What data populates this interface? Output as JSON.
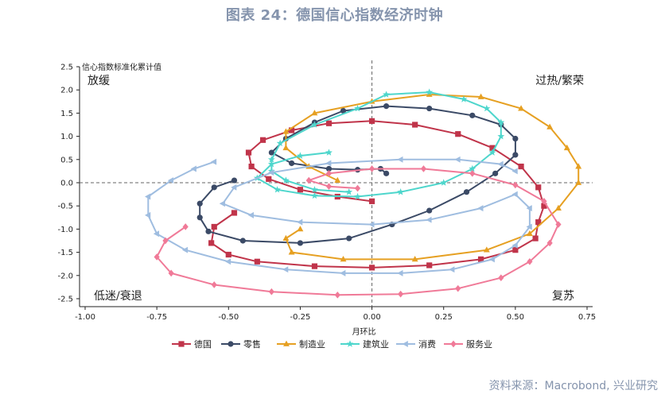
{
  "page": {
    "title": "图表 24：德国信心指数经济时钟",
    "source": "资料来源：Macrobond, 兴业研究"
  },
  "chart_data": {
    "type": "line",
    "title": "图表 24：德国信心指数经济时钟",
    "xlabel": "月环比",
    "ylabel": "信心指数标准化累计值",
    "xlim": [
      -1.0,
      0.75
    ],
    "ylim": [
      -2.5,
      2.5
    ],
    "x_ticks": [
      "-1.00",
      "-0.75",
      "-0.50",
      "-0.25",
      "0.00",
      "0.25",
      "0.50",
      "0.75"
    ],
    "y_ticks": [
      "2.5",
      "2.0",
      "1.5",
      "1.0",
      "0.5",
      "0.0",
      "-0.5",
      "-1.0",
      "-1.5",
      "-2.0",
      "-2.5"
    ],
    "reference_lines": {
      "x": 0,
      "y": 0,
      "style": "dashed"
    },
    "quadrants": {
      "top_left": "放缓",
      "top_right": "过热/繁荣",
      "bottom_left": "低迷/衰退",
      "bottom_right": "复苏"
    },
    "legend_position": "bottom",
    "grid": false,
    "series": [
      {
        "name": "德国",
        "color": "#c0344a",
        "marker": "square",
        "points": [
          [
            -0.48,
            -0.65
          ],
          [
            -0.55,
            -0.95
          ],
          [
            -0.56,
            -1.3
          ],
          [
            -0.5,
            -1.55
          ],
          [
            -0.4,
            -1.7
          ],
          [
            -0.2,
            -1.8
          ],
          [
            0.0,
            -1.83
          ],
          [
            0.2,
            -1.78
          ],
          [
            0.38,
            -1.65
          ],
          [
            0.5,
            -1.45
          ],
          [
            0.57,
            -1.2
          ],
          [
            0.58,
            -0.85
          ],
          [
            0.6,
            -0.5
          ],
          [
            0.58,
            -0.1
          ],
          [
            0.52,
            0.35
          ],
          [
            0.42,
            0.75
          ],
          [
            0.3,
            1.05
          ],
          [
            0.15,
            1.25
          ],
          [
            0.0,
            1.33
          ],
          [
            -0.15,
            1.28
          ],
          [
            -0.28,
            1.13
          ],
          [
            -0.38,
            0.92
          ],
          [
            -0.43,
            0.65
          ],
          [
            -0.42,
            0.35
          ],
          [
            -0.36,
            0.08
          ],
          [
            -0.25,
            -0.15
          ],
          [
            -0.12,
            -0.3
          ],
          [
            0.0,
            -0.4
          ]
        ]
      },
      {
        "name": "零售",
        "color": "#3b4a66",
        "marker": "circle",
        "points": [
          [
            0.05,
            0.2
          ],
          [
            0.03,
            0.3
          ],
          [
            -0.05,
            0.28
          ],
          [
            -0.15,
            0.3
          ],
          [
            -0.28,
            0.42
          ],
          [
            -0.35,
            0.65
          ],
          [
            -0.3,
            0.95
          ],
          [
            -0.2,
            1.3
          ],
          [
            -0.1,
            1.55
          ],
          [
            0.05,
            1.65
          ],
          [
            0.2,
            1.6
          ],
          [
            0.35,
            1.45
          ],
          [
            0.45,
            1.25
          ],
          [
            0.5,
            0.95
          ],
          [
            0.5,
            0.6
          ],
          [
            0.43,
            0.2
          ],
          [
            0.33,
            -0.2
          ],
          [
            0.2,
            -0.6
          ],
          [
            0.07,
            -0.9
          ],
          [
            -0.08,
            -1.2
          ],
          [
            -0.25,
            -1.3
          ],
          [
            -0.45,
            -1.25
          ],
          [
            -0.57,
            -1.05
          ],
          [
            -0.6,
            -0.75
          ],
          [
            -0.6,
            -0.45
          ],
          [
            -0.55,
            -0.1
          ],
          [
            -0.48,
            0.05
          ]
        ]
      },
      {
        "name": "制造业",
        "color": "#e6a022",
        "marker": "triangle-up",
        "points": [
          [
            -0.12,
            0.05
          ],
          [
            -0.22,
            0.35
          ],
          [
            -0.3,
            0.75
          ],
          [
            -0.3,
            1.1
          ],
          [
            -0.2,
            1.5
          ],
          [
            0.0,
            1.75
          ],
          [
            0.2,
            1.9
          ],
          [
            0.38,
            1.85
          ],
          [
            0.52,
            1.6
          ],
          [
            0.62,
            1.2
          ],
          [
            0.68,
            0.75
          ],
          [
            0.72,
            0.35
          ],
          [
            0.72,
            0.0
          ],
          [
            0.65,
            -0.55
          ],
          [
            0.55,
            -1.1
          ],
          [
            0.4,
            -1.45
          ],
          [
            0.15,
            -1.65
          ],
          [
            -0.1,
            -1.65
          ],
          [
            -0.28,
            -1.5
          ],
          [
            -0.3,
            -1.2
          ],
          [
            -0.25,
            -1.0
          ]
        ]
      },
      {
        "name": "建筑业",
        "color": "#4ed6cc",
        "marker": "star",
        "points": [
          [
            -0.08,
            -0.2
          ],
          [
            -0.2,
            -0.15
          ],
          [
            -0.3,
            0.05
          ],
          [
            -0.35,
            0.25
          ],
          [
            -0.35,
            0.5
          ],
          [
            -0.32,
            0.85
          ],
          [
            -0.2,
            1.25
          ],
          [
            -0.05,
            1.6
          ],
          [
            0.05,
            1.9
          ],
          [
            0.2,
            1.95
          ],
          [
            0.32,
            1.8
          ],
          [
            0.4,
            1.6
          ],
          [
            0.45,
            1.3
          ],
          [
            0.45,
            1.0
          ],
          [
            0.42,
            0.65
          ],
          [
            0.35,
            0.3
          ],
          [
            0.25,
            0.0
          ],
          [
            0.1,
            -0.2
          ],
          [
            -0.05,
            -0.3
          ],
          [
            -0.2,
            -0.28
          ],
          [
            -0.33,
            -0.15
          ],
          [
            -0.4,
            0.1
          ],
          [
            -0.35,
            0.4
          ],
          [
            -0.25,
            0.58
          ],
          [
            -0.15,
            0.65
          ]
        ]
      },
      {
        "name": "消费",
        "color": "#9fbde0",
        "marker": "triangle-left",
        "points": [
          [
            -0.55,
            0.45
          ],
          [
            -0.62,
            0.3
          ],
          [
            -0.7,
            0.05
          ],
          [
            -0.78,
            -0.3
          ],
          [
            -0.78,
            -0.7
          ],
          [
            -0.75,
            -1.1
          ],
          [
            -0.65,
            -1.45
          ],
          [
            -0.5,
            -1.7
          ],
          [
            -0.3,
            -1.87
          ],
          [
            -0.1,
            -1.95
          ],
          [
            0.1,
            -1.95
          ],
          [
            0.28,
            -1.87
          ],
          [
            0.42,
            -1.65
          ],
          [
            0.5,
            -1.35
          ],
          [
            0.55,
            -0.95
          ],
          [
            0.55,
            -0.55
          ],
          [
            0.5,
            -0.25
          ],
          [
            0.38,
            -0.55
          ],
          [
            0.2,
            -0.8
          ],
          [
            0.0,
            -0.9
          ],
          [
            -0.25,
            -0.85
          ],
          [
            -0.42,
            -0.7
          ],
          [
            -0.52,
            -0.45
          ],
          [
            -0.48,
            -0.1
          ],
          [
            -0.35,
            0.22
          ],
          [
            -0.15,
            0.42
          ],
          [
            0.1,
            0.5
          ],
          [
            0.3,
            0.5
          ],
          [
            0.45,
            0.4
          ],
          [
            0.5,
            0.25
          ]
        ]
      },
      {
        "name": "服务业",
        "color": "#f07a98",
        "marker": "diamond",
        "points": [
          [
            -0.65,
            -0.95
          ],
          [
            -0.72,
            -1.25
          ],
          [
            -0.75,
            -1.6
          ],
          [
            -0.7,
            -1.95
          ],
          [
            -0.55,
            -2.2
          ],
          [
            -0.35,
            -2.35
          ],
          [
            -0.12,
            -2.42
          ],
          [
            0.1,
            -2.4
          ],
          [
            0.3,
            -2.28
          ],
          [
            0.45,
            -2.05
          ],
          [
            0.55,
            -1.7
          ],
          [
            0.62,
            -1.3
          ],
          [
            0.65,
            -0.9
          ],
          [
            0.6,
            -0.4
          ],
          [
            0.5,
            -0.05
          ],
          [
            0.35,
            0.2
          ],
          [
            0.18,
            0.3
          ],
          [
            0.0,
            0.3
          ],
          [
            -0.15,
            0.2
          ],
          [
            -0.22,
            0.05
          ],
          [
            -0.15,
            -0.08
          ],
          [
            -0.05,
            -0.12
          ]
        ]
      }
    ]
  }
}
